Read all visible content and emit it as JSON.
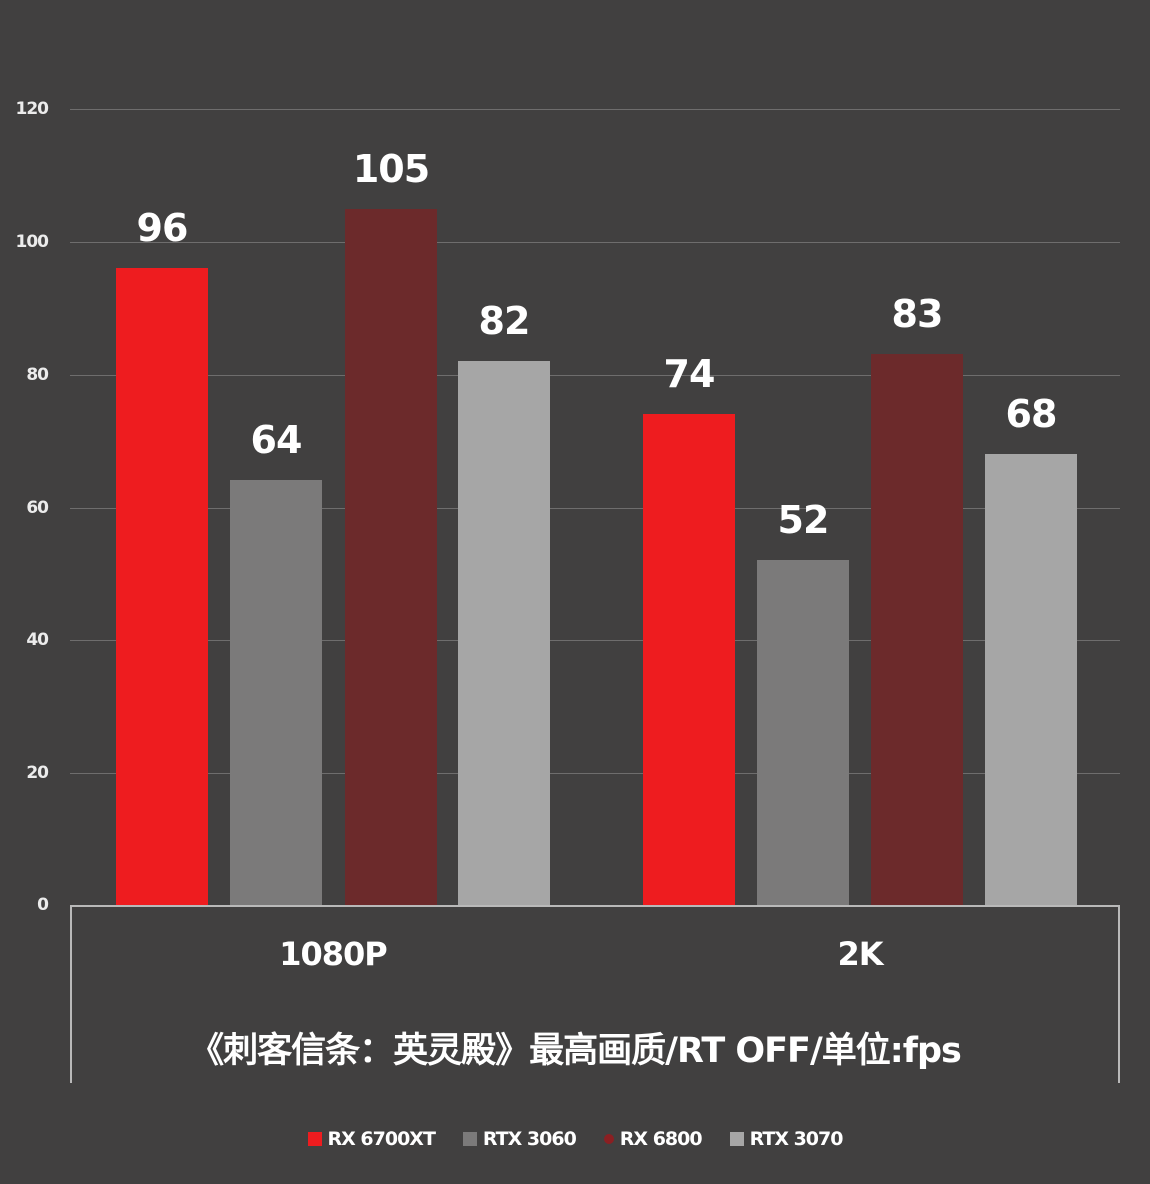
{
  "chart_data": {
    "type": "bar",
    "title": "《刺客信条：英灵殿》最高画质/RT OFF/单位:fps",
    "xlabel": "",
    "ylabel": "fps",
    "ylim": [
      0,
      120
    ],
    "yticks": [
      0,
      20,
      40,
      60,
      80,
      100,
      120
    ],
    "grid": true,
    "legend_position": "bottom",
    "categories": [
      "1080P",
      "2K"
    ],
    "series": [
      {
        "name": "RX 6700XT",
        "color": "#ee1c1f",
        "values": [
          96,
          74
        ]
      },
      {
        "name": "RTX 3060",
        "color": "#7b7a7a",
        "values": [
          64,
          52
        ]
      },
      {
        "name": "RX 6800",
        "color": "#6c2a2b",
        "values": [
          105,
          83
        ]
      },
      {
        "name": "RTX 3070",
        "color": "#a6a6a6",
        "values": [
          82,
          68
        ]
      }
    ]
  },
  "yaxis": {
    "ticks": [
      "0",
      "20",
      "40",
      "60",
      "80",
      "100",
      "120"
    ]
  },
  "categories": {
    "c0": "1080P",
    "c1": "2K"
  },
  "title": "《刺客信条：英灵殿》最高画质/RT OFF/单位:fps",
  "labels": {
    "s0c0": "96",
    "s1c0": "64",
    "s2c0": "105",
    "s3c0": "82",
    "s0c1": "74",
    "s1c1": "52",
    "s2c1": "83",
    "s3c1": "68"
  },
  "legend": [
    {
      "label": "RX 6700XT",
      "color": "#ee1c1f"
    },
    {
      "label": "RTX 3060",
      "color": "#7b7a7a"
    },
    {
      "label": "RX 6800",
      "color": "#8b1f22"
    },
    {
      "label": "RTX 3070",
      "color": "#a6a6a6"
    }
  ]
}
